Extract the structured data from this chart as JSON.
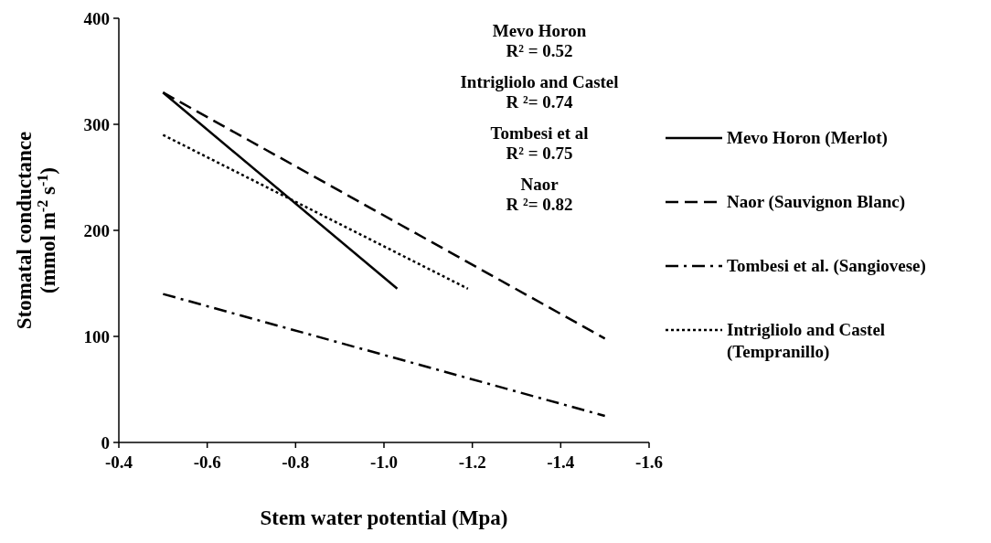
{
  "chart_data": {
    "type": "line",
    "xlabel": "Stem water potential (Mpa)",
    "ylabel": "Stomatal conductance\n(mmol m$^{-2}$ s$^{-1}$)",
    "xlim": [
      -0.4,
      -1.6
    ],
    "xticks": [
      -0.4,
      -0.6,
      -0.8,
      {
        "value": -1.0,
        "label": "-1.0"
      },
      -1.2,
      -1.4,
      -1.6
    ],
    "ylim": [
      0,
      400
    ],
    "yticks": [
      0,
      100,
      200,
      300,
      400
    ],
    "grid": false,
    "legend": "right",
    "series": [
      {
        "name": "Mevo Horon (Merlot)",
        "color": "#000000",
        "line_style": "solid",
        "x": [
          -0.5,
          -1.03
        ],
        "values": [
          330,
          145
        ]
      },
      {
        "name": "Naor (Sauvignon Blanc)",
        "color": "#000000",
        "line_style": "dashed",
        "x": [
          -0.5,
          -1.5
        ],
        "values": [
          330,
          98
        ]
      },
      {
        "name": "Tombesi et al. (Sangiovese)",
        "color": "#000000",
        "line_style": "dashdot",
        "x": [
          -0.5,
          -1.5
        ],
        "values": [
          140,
          25
        ]
      },
      {
        "name": "Intrigliolo and Castel (Tempranillo)",
        "color": "#000000",
        "line_style": "dotted",
        "x": [
          -0.5,
          -1.19
        ],
        "values": [
          290,
          145
        ]
      }
    ],
    "annotations": [
      "Mevo Horon\nR² = 0.52",
      "Intrigliolo and Castel\nR ²= 0.74",
      "Tombesi et al\nR² = 0.75",
      "Naor\nR ²= 0.82"
    ]
  }
}
